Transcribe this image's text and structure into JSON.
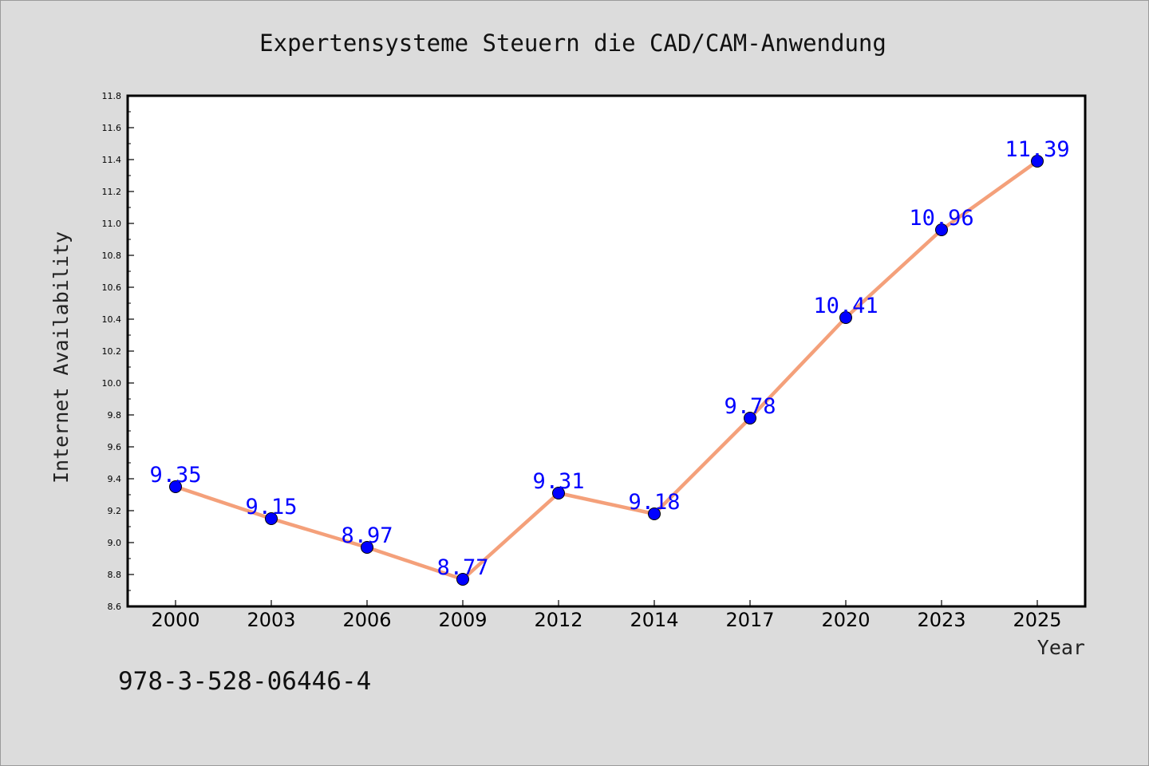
{
  "chart_data": {
    "type": "line",
    "title": "Expertensysteme Steuern die CAD/CAM-Anwendung",
    "xlabel": "Year",
    "ylabel": "Internet Availability",
    "categories": [
      "2000",
      "2003",
      "2006",
      "2009",
      "2012",
      "2014",
      "2017",
      "2020",
      "2023",
      "2025"
    ],
    "series": [
      {
        "values": [
          9.35,
          9.15,
          8.97,
          8.77,
          9.31,
          9.18,
          9.78,
          10.41,
          10.96,
          11.39
        ]
      }
    ],
    "ylim": [
      8.6,
      11.8
    ],
    "yticks": [
      "8.6",
      "8.8",
      "9.0",
      "9.2",
      "9.4",
      "9.6",
      "9.8",
      "10.0",
      "10.2",
      "10.4",
      "10.6",
      "10.8",
      "11.0",
      "11.2",
      "11.4",
      "11.6",
      "11.8"
    ],
    "grid": false,
    "legend": "none",
    "data_labels": true
  },
  "footnote": "978-3-528-06446-4",
  "colors": {
    "background": "#dcdcdc",
    "plot_background": "#ffffff",
    "line": "#f4a07a",
    "marker": "#0000ff",
    "data_label": "#0000ff"
  }
}
